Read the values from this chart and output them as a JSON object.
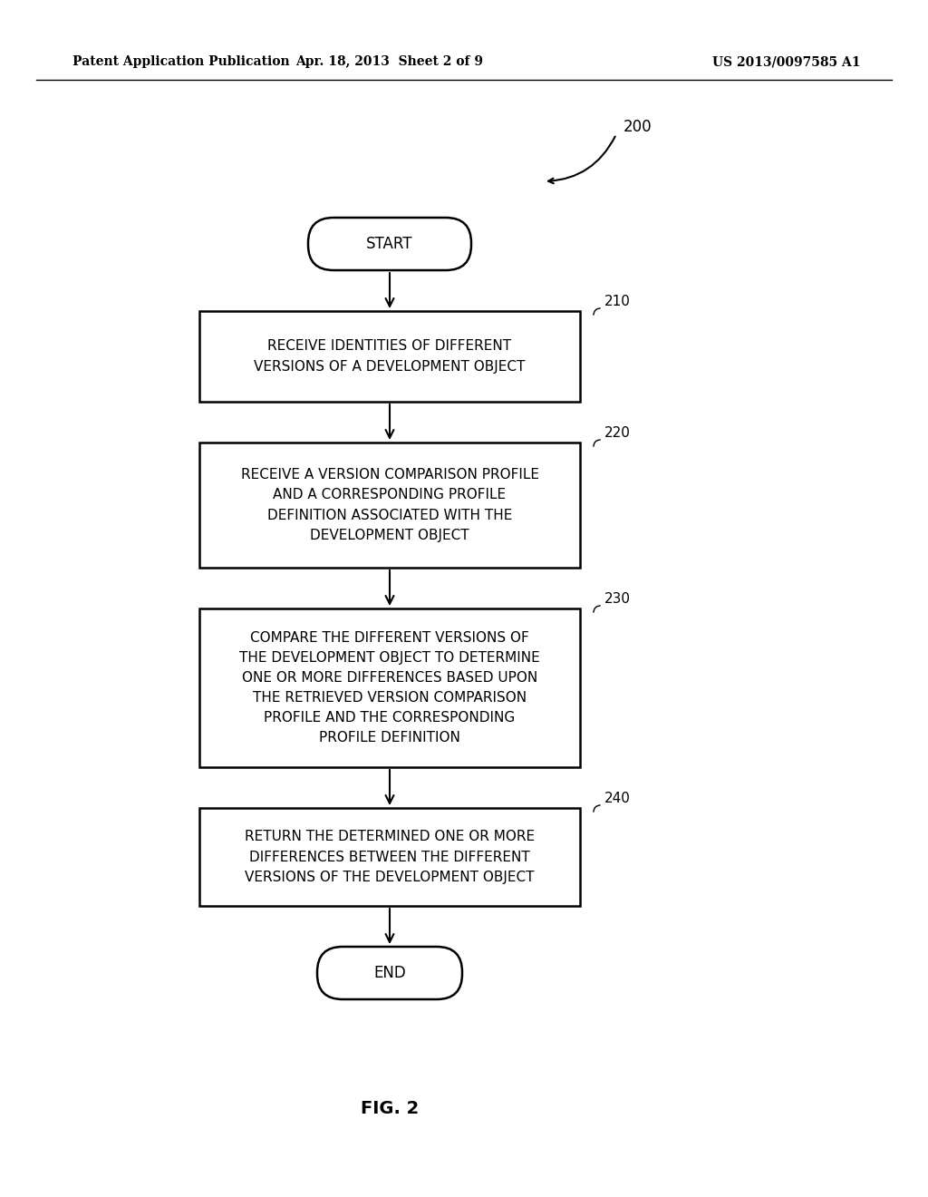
{
  "bg_color": "#ffffff",
  "header_left": "Patent Application Publication",
  "header_center": "Apr. 18, 2013  Sheet 2 of 9",
  "header_right": "US 2013/0097585 A1",
  "fig_label": "FIG. 2",
  "diagram_ref": "200",
  "start_label": "START",
  "end_label": "END",
  "boxes": [
    {
      "id": "210",
      "label": "RECEIVE IDENTITIES OF DIFFERENT\nVERSIONS OF A DEVELOPMENT OBJECT",
      "ref": "210"
    },
    {
      "id": "220",
      "label": "RECEIVE A VERSION COMPARISON PROFILE\nAND A CORRESPONDING PROFILE\nDEFINITION ASSOCIATED WITH THE\nDEVELOPMENT OBJECT",
      "ref": "220"
    },
    {
      "id": "230",
      "label": "COMPARE THE DIFFERENT VERSIONS OF\nTHE DEVELOPMENT OBJECT TO DETERMINE\nONE OR MORE DIFFERENCES BASED UPON\nTHE RETRIEVED VERSION COMPARISON\nPROFILE AND THE CORRESPONDING\nPROFILE DEFINITION",
      "ref": "230"
    },
    {
      "id": "240",
      "label": "RETURN THE DETERMINED ONE OR MORE\nDIFFERENCES BETWEEN THE DIFFERENT\nVERSIONS OF THE DEVELOPMENT OBJECT",
      "ref": "240"
    }
  ]
}
